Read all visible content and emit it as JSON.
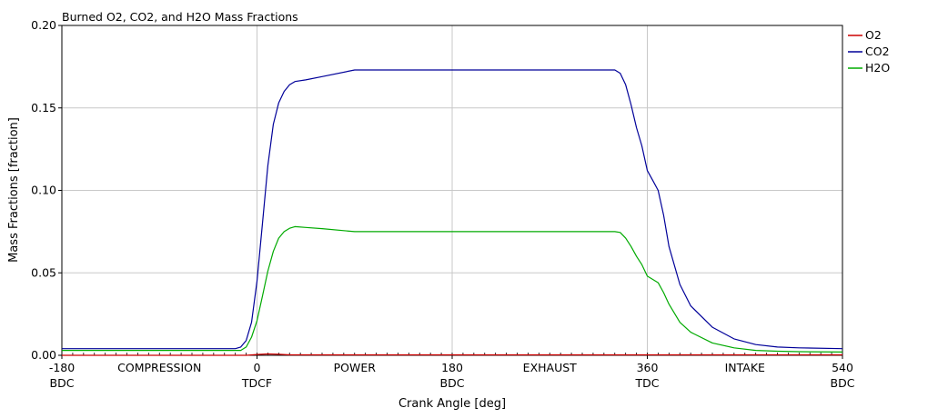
{
  "chart_data": {
    "type": "line",
    "title": "Burned O2, CO2, and H2O Mass Fractions",
    "xlabel": "Crank Angle [deg]",
    "ylabel": "Mass Fractions [fraction]",
    "xlim": [
      -180,
      540
    ],
    "ylim": [
      0,
      0.2
    ],
    "grid": true,
    "legend_position": "right",
    "y_ticks": [
      "0.00",
      "0.05",
      "0.10",
      "0.15",
      "0.20"
    ],
    "x_ticks": [
      {
        "value": -180,
        "label": "-180",
        "sublabel": "BDC"
      },
      {
        "value": 0,
        "label": "0",
        "sublabel": "TDCF"
      },
      {
        "value": 180,
        "label": "180",
        "sublabel": "BDC"
      },
      {
        "value": 360,
        "label": "360",
        "sublabel": "TDC"
      },
      {
        "value": 540,
        "label": "540",
        "sublabel": "BDC"
      }
    ],
    "phase_labels": [
      {
        "value": -90,
        "label": "COMPRESSION"
      },
      {
        "value": 90,
        "label": "POWER"
      },
      {
        "value": 270,
        "label": "EXHAUST"
      },
      {
        "value": 450,
        "label": "INTAKE"
      }
    ],
    "series": [
      {
        "name": "O2",
        "color": "#cc0000",
        "x": [
          -180,
          -10,
          0,
          10,
          20,
          30,
          540
        ],
        "y": [
          0.0,
          0.0,
          0.0005,
          0.0008,
          0.0006,
          0.0003,
          0.0003
        ]
      },
      {
        "name": "CO2",
        "color": "#000099",
        "x": [
          -180,
          -20,
          -15,
          -10,
          -5,
          0,
          5,
          10,
          15,
          20,
          25,
          30,
          35,
          45,
          60,
          90,
          180,
          330,
          335,
          340,
          345,
          350,
          355,
          360,
          365,
          370,
          375,
          380,
          390,
          400,
          420,
          440,
          460,
          480,
          500,
          540
        ],
        "y": [
          0.004,
          0.004,
          0.005,
          0.009,
          0.02,
          0.045,
          0.08,
          0.115,
          0.14,
          0.153,
          0.16,
          0.164,
          0.166,
          0.167,
          0.169,
          0.173,
          0.173,
          0.173,
          0.171,
          0.164,
          0.152,
          0.138,
          0.127,
          0.112,
          0.106,
          0.1,
          0.085,
          0.066,
          0.043,
          0.03,
          0.017,
          0.01,
          0.0065,
          0.005,
          0.0045,
          0.004
        ]
      },
      {
        "name": "H2O",
        "color": "#00aa00",
        "x": [
          -180,
          -15,
          -10,
          -5,
          0,
          5,
          10,
          15,
          20,
          25,
          30,
          35,
          45,
          60,
          90,
          180,
          330,
          335,
          340,
          345,
          350,
          355,
          360,
          365,
          370,
          375,
          380,
          390,
          400,
          420,
          440,
          460,
          480,
          500,
          540
        ],
        "y": [
          0.003,
          0.003,
          0.005,
          0.011,
          0.021,
          0.036,
          0.051,
          0.063,
          0.071,
          0.075,
          0.077,
          0.078,
          0.0775,
          0.0768,
          0.075,
          0.075,
          0.075,
          0.0745,
          0.071,
          0.066,
          0.06,
          0.055,
          0.048,
          0.046,
          0.044,
          0.038,
          0.031,
          0.02,
          0.014,
          0.0075,
          0.0045,
          0.003,
          0.0025,
          0.0022,
          0.002
        ]
      }
    ]
  }
}
